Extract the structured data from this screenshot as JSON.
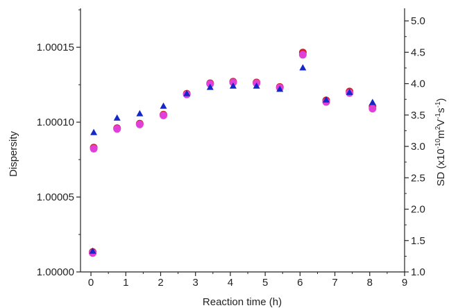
{
  "chart_data": {
    "type": "scatter",
    "xlabel": "Reaction time (h)",
    "ylabel_left": "Dispersity",
    "ylabel_right_prefix": "SD (x10",
    "ylabel_right_exp1": "-10",
    "ylabel_right_mid1": "m",
    "ylabel_right_exp2": "2",
    "ylabel_right_mid2": "V",
    "ylabel_right_exp3": "-1",
    "ylabel_right_mid3": "s",
    "ylabel_right_exp4": "-1",
    "ylabel_right_suffix": ")",
    "xlim": [
      -0.3,
      9
    ],
    "ylim_left": [
      1.0,
      1.000176
    ],
    "ylim_right": [
      1.0,
      5.2
    ],
    "x_ticks": [
      "0",
      "1",
      "2",
      "3",
      "4",
      "5",
      "6",
      "7",
      "8",
      "9"
    ],
    "y_left_ticks": [
      "1.00000",
      "1.00005",
      "1.00010",
      "1.00015"
    ],
    "y_right_ticks": [
      "1.0",
      "1.5",
      "2.0",
      "2.5",
      "3.0",
      "3.5",
      "4.0",
      "4.5",
      "5.0"
    ],
    "grid": false,
    "series": [
      {
        "marker": "circle",
        "color": "#d0202a",
        "axis": "left",
        "x": [
          0.05,
          0.08,
          0.75,
          1.4,
          2.08,
          2.75,
          3.42,
          4.08,
          4.75,
          5.42,
          6.08,
          6.75,
          7.42,
          8.08
        ],
        "y": [
          1.0000133,
          1.000083,
          1.000096,
          1.000099,
          1.000105,
          1.000119,
          1.000126,
          1.000127,
          1.0001265,
          1.0001235,
          1.0001465,
          1.0001145,
          1.0001205,
          1.0001105
        ]
      },
      {
        "marker": "circle",
        "color": "#e040d8",
        "axis": "left",
        "x": [
          0.05,
          0.08,
          0.75,
          1.4,
          2.08,
          2.75,
          3.42,
          4.08,
          4.75,
          5.42,
          6.08,
          6.75,
          7.42,
          8.08
        ],
        "y": [
          1.0000126,
          1.0000823,
          1.0000955,
          1.0000985,
          1.0001045,
          1.0001185,
          1.0001255,
          1.0001265,
          1.000126,
          1.000123,
          1.000145,
          1.0001135,
          1.0001195,
          1.000109
        ]
      },
      {
        "marker": "triangle",
        "color": "#1428c8",
        "axis": "right",
        "x": [
          0.05,
          0.08,
          0.75,
          1.4,
          2.08,
          2.75,
          3.42,
          4.08,
          4.75,
          5.42,
          6.08,
          6.75,
          7.42,
          8.08
        ],
        "y": [
          1.33,
          3.22,
          3.45,
          3.52,
          3.64,
          3.84,
          3.94,
          3.96,
          3.96,
          3.91,
          4.25,
          3.74,
          3.86,
          3.7
        ]
      }
    ]
  }
}
